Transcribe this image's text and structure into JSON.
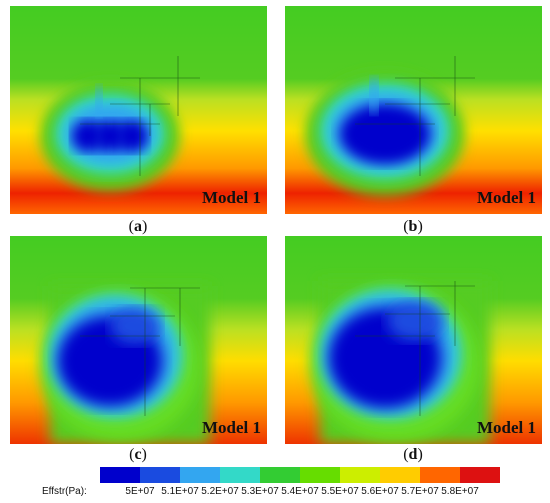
{
  "panels": [
    {
      "id": "a",
      "caption": "a",
      "model": "Model 1"
    },
    {
      "id": "b",
      "caption": "b",
      "model": "Model 1"
    },
    {
      "id": "c",
      "caption": "c",
      "model": "Model 1"
    },
    {
      "id": "d",
      "caption": "d",
      "model": "Model 1"
    }
  ],
  "legend": {
    "title": "Effstr(Pa):",
    "ticks": [
      "5E+07",
      "5.1E+07",
      "5.2E+07",
      "5.3E+07",
      "5.4E+07",
      "5.5E+07",
      "5.6E+07",
      "5.7E+07",
      "5.8E+07"
    ],
    "colors": [
      "#0000cc",
      "#1a4be0",
      "#33a6f0",
      "#33d9c8",
      "#33cc33",
      "#66dd00",
      "#ccee00",
      "#ffcc00",
      "#ff6600",
      "#dd1111"
    ]
  }
}
